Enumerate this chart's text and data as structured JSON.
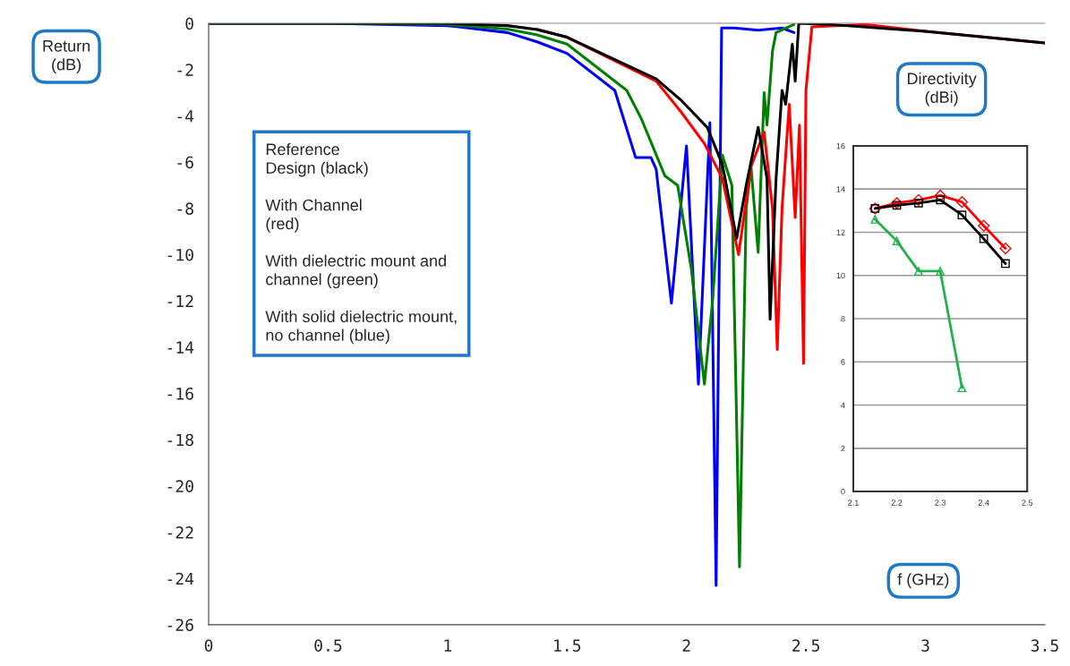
{
  "chart_data": [
    {
      "type": "line",
      "xlabel": "f (GHz)",
      "ylabel": "Return\n(dB)",
      "annotations": [
        "Reference\nDesign (black)\n\nWith Channel\n(red)\n\nWith dielectric mount and\nchannel (green)\n\nWith solid dielectric mount,\nno channel (blue)"
      ],
      "xlim": [
        0,
        3.5
      ],
      "ylim": [
        -26,
        0
      ],
      "xticks": [
        0,
        0.5,
        1,
        1.5,
        2,
        2.5,
        3,
        3.5
      ],
      "yticks": [
        0,
        -2,
        -4,
        -6,
        -8,
        -10,
        -12,
        -14,
        -16,
        -18,
        -20,
        -22,
        -24,
        -26
      ],
      "series": [
        {
          "color": "#0000ff",
          "x": [
            0,
            0.5,
            1.0,
            1.25,
            1.375,
            1.5,
            1.7,
            1.787,
            1.851,
            1.873,
            1.937,
            2.0,
            2.05,
            2.098,
            2.124,
            2.147,
            2.2,
            2.3,
            2.4,
            2.45
          ],
          "values": [
            0,
            0,
            -0.1,
            -0.4,
            -0.8,
            -1.3,
            -2.9,
            -5.8,
            -5.8,
            -6.3,
            -12.1,
            -5.3,
            -15.6,
            -4.3,
            -24.3,
            -0.2,
            -0.2,
            -0.3,
            -0.2,
            -0.4
          ]
        },
        {
          "color": "#008000",
          "x": [
            0,
            0.5,
            1.0,
            1.25,
            1.375,
            1.5,
            1.75,
            1.81,
            1.91,
            1.963,
            2.02,
            2.075,
            2.11,
            2.15,
            2.19,
            2.222,
            2.25,
            2.27,
            2.3,
            2.325,
            2.337,
            2.36,
            2.375,
            2.45
          ],
          "values": [
            0,
            0,
            -0.05,
            -0.25,
            -0.5,
            -0.9,
            -2.9,
            -4.1,
            -6.6,
            -7.0,
            -10.6,
            -15.6,
            -11.9,
            -5.7,
            -7.0,
            -23.5,
            -8.0,
            -6.2,
            -9.9,
            -3.0,
            -4.4,
            -1.2,
            -0.4,
            -0.05
          ]
        },
        {
          "color": "#ff0000",
          "x": [
            1.375,
            1.5,
            1.873,
            1.975,
            2.075,
            2.15,
            2.218,
            2.27,
            2.325,
            2.36,
            2.38,
            2.4,
            2.43,
            2.455,
            2.473,
            2.49,
            2.5,
            2.525,
            2.75,
            3.0,
            3.5
          ],
          "values": [
            -0.27,
            -0.6,
            -2.5,
            -3.8,
            -5.2,
            -6.7,
            -10.0,
            -6.2,
            -4.7,
            -8.0,
            -14.1,
            -8.0,
            -3.5,
            -8.4,
            -4.4,
            -14.7,
            -2.9,
            -0.15,
            -0.05,
            -0.35,
            -0.85
          ]
        },
        {
          "color": "#000000",
          "x": [
            0,
            0.5,
            1.0,
            1.25,
            1.375,
            1.5,
            1.873,
            1.975,
            2.087,
            2.15,
            2.21,
            2.25,
            2.3,
            2.337,
            2.35,
            2.375,
            2.4,
            2.415,
            2.443,
            2.455,
            2.47,
            2.6,
            3.0,
            3.5
          ],
          "values": [
            0,
            0,
            0,
            -0.1,
            -0.27,
            -0.6,
            -2.4,
            -3.3,
            -4.5,
            -6.1,
            -9.3,
            -7.0,
            -4.5,
            -6.7,
            -12.8,
            -6.7,
            -2.9,
            -3.5,
            -0.9,
            -2.5,
            0,
            -0.05,
            -0.35,
            -0.85
          ]
        }
      ]
    },
    {
      "type": "line",
      "ylabel": "Directivity\n(dBi)",
      "xlim": [
        2.1,
        2.5
      ],
      "ylim": [
        0,
        16
      ],
      "xticks": [
        2.1,
        2.2,
        2.3,
        2.4,
        2.5
      ],
      "yticks": [
        0,
        2,
        4,
        6,
        8,
        10,
        12,
        14,
        16
      ],
      "grid": "y",
      "series": [
        {
          "color": "#ff0000",
          "marker": "diamond",
          "x": [
            2.15,
            2.2,
            2.25,
            2.3,
            2.35,
            2.4,
            2.45
          ],
          "values": [
            13.1,
            13.35,
            13.5,
            13.7,
            13.4,
            12.3,
            11.25
          ]
        },
        {
          "color": "#000000",
          "marker": "square",
          "x": [
            2.15,
            2.2,
            2.25,
            2.3,
            2.35,
            2.4,
            2.45
          ],
          "values": [
            13.1,
            13.25,
            13.35,
            13.5,
            12.8,
            11.7,
            10.55
          ]
        },
        {
          "color": "#22b14c",
          "marker": "triangle",
          "x": [
            2.15,
            2.2,
            2.25,
            2.3,
            2.35
          ],
          "values": [
            12.6,
            11.6,
            10.2,
            10.2,
            4.8
          ]
        }
      ]
    }
  ]
}
